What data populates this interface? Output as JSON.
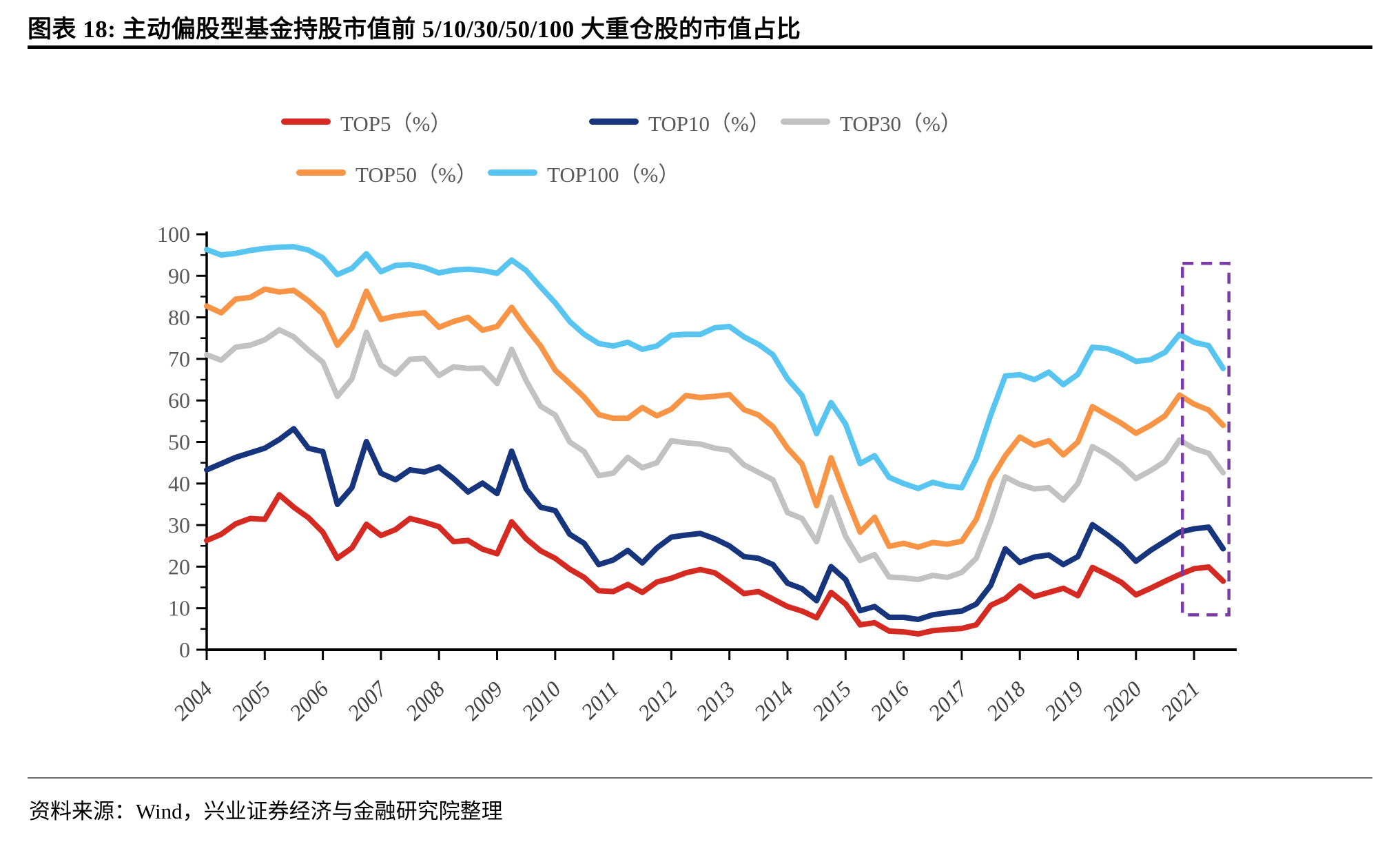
{
  "title": "图表 18:  主动偏股型基金持股市值前 5/10/30/50/100 大重仓股的市值占比",
  "source": "资料来源：Wind，兴业证券经济与金融研究院整理",
  "legend": [
    {
      "label": "TOP5（%）",
      "color": "#d42a22"
    },
    {
      "label": "TOP10（%）",
      "color": "#17357c"
    },
    {
      "label": "TOP30（%）",
      "color": "#c2c2c2"
    },
    {
      "label": "TOP50（%）",
      "color": "#f79445"
    },
    {
      "label": "TOP100（%）",
      "color": "#58c5f0"
    }
  ],
  "chart_data": {
    "type": "line",
    "title": "",
    "xlabel": "",
    "ylabel": "",
    "x_start": 2004,
    "x_step": 0.25,
    "x_ticks": [
      2004,
      2005,
      2006,
      2007,
      2008,
      2009,
      2010,
      2011,
      2012,
      2013,
      2014,
      2015,
      2016,
      2017,
      2018,
      2019,
      2020,
      2021
    ],
    "y_ticks": [
      0,
      10,
      20,
      30,
      40,
      50,
      60,
      70,
      80,
      90,
      100
    ],
    "y_minor_step": 5,
    "ylim": [
      0,
      100
    ],
    "grid": false,
    "legend_position": "top",
    "highlight_box": {
      "x_from": 2020.8,
      "x_to": 2021.6,
      "y_from": 8.4,
      "y_to": 93.0,
      "color": "#7a3ba5"
    },
    "series": [
      {
        "id": "top5",
        "name": "TOP5（%）",
        "color": "#d42a22",
        "values": [
          26.3,
          27.8,
          30.3,
          31.6,
          31.4,
          37.3,
          34.3,
          31.8,
          28.3,
          22.0,
          24.5,
          30.2,
          27.5,
          28.9,
          31.6,
          30.7,
          29.6,
          26.0,
          26.3,
          24.2,
          23.1,
          30.8,
          26.7,
          23.8,
          22.0,
          19.4,
          17.4,
          14.2,
          14.0,
          15.7,
          13.8,
          16.3,
          17.2,
          18.5,
          19.3,
          18.5,
          16.1,
          13.5,
          14.0,
          12.2,
          10.4,
          9.3,
          7.7,
          13.8,
          11.0,
          6.0,
          6.5,
          4.5,
          4.3,
          3.8,
          4.6,
          4.9,
          5.1,
          6.0,
          10.7,
          12.3,
          15.3,
          12.8,
          13.8,
          14.8,
          13.0,
          19.8,
          18.1,
          16.2,
          13.2,
          14.8,
          16.5,
          18.1,
          19.5,
          19.9,
          16.5
        ]
      },
      {
        "id": "top10",
        "name": "TOP10（%）",
        "color": "#17357c",
        "values": [
          43.3,
          44.8,
          46.3,
          47.4,
          48.5,
          50.6,
          53.2,
          48.5,
          47.7,
          35.0,
          39.0,
          50.1,
          42.5,
          40.9,
          43.3,
          42.8,
          44.0,
          41.2,
          38.0,
          40.1,
          37.6,
          47.8,
          38.7,
          34.3,
          33.5,
          27.8,
          25.6,
          20.5,
          21.6,
          23.9,
          20.9,
          24.5,
          27.1,
          27.6,
          28.0,
          26.7,
          25.0,
          22.4,
          22.0,
          20.5,
          16.0,
          14.7,
          11.8,
          20.0,
          16.9,
          9.4,
          10.4,
          7.8,
          7.8,
          7.3,
          8.4,
          8.9,
          9.3,
          11.0,
          15.5,
          24.3,
          21.0,
          22.3,
          22.8,
          20.5,
          22.4,
          30.1,
          27.7,
          25.0,
          21.3,
          23.9,
          26.1,
          28.3,
          29.1,
          29.5,
          24.3
        ]
      },
      {
        "id": "top30",
        "name": "TOP30（%）",
        "color": "#c2c2c2",
        "values": [
          71.0,
          69.7,
          72.8,
          73.3,
          74.6,
          77.0,
          75.3,
          72.1,
          69.2,
          61.0,
          65.2,
          76.4,
          68.5,
          66.3,
          69.9,
          70.1,
          66.0,
          68.1,
          67.7,
          67.8,
          64.1,
          72.3,
          64.8,
          58.6,
          56.5,
          50.0,
          47.7,
          41.9,
          42.5,
          46.3,
          43.8,
          45.0,
          50.3,
          49.8,
          49.5,
          48.5,
          48.0,
          44.5,
          42.7,
          40.9,
          33.0,
          31.6,
          26.0,
          36.7,
          27.3,
          21.5,
          22.9,
          17.5,
          17.3,
          16.9,
          17.9,
          17.4,
          18.6,
          22.0,
          31.0,
          41.6,
          39.8,
          38.7,
          39.0,
          36.0,
          40.0,
          48.9,
          47.0,
          44.5,
          41.2,
          43.1,
          45.3,
          50.5,
          48.4,
          47.3,
          42.6
        ]
      },
      {
        "id": "top50",
        "name": "TOP50（%）",
        "color": "#f79445",
        "values": [
          82.7,
          81.1,
          84.4,
          84.8,
          86.8,
          86.1,
          86.5,
          84.0,
          80.8,
          73.3,
          77.5,
          86.3,
          79.5,
          80.3,
          80.8,
          81.1,
          77.6,
          79.0,
          80.0,
          76.9,
          77.8,
          82.4,
          77.5,
          73.1,
          67.3,
          64.1,
          60.8,
          56.6,
          55.7,
          55.7,
          58.3,
          56.3,
          57.9,
          61.2,
          60.7,
          61.0,
          61.4,
          57.8,
          56.5,
          53.7,
          48.5,
          44.7,
          34.7,
          46.2,
          37.0,
          28.3,
          31.9,
          24.9,
          25.6,
          24.7,
          25.8,
          25.4,
          26.1,
          31.4,
          40.9,
          46.7,
          51.2,
          49.2,
          50.3,
          46.9,
          50.0,
          58.5,
          56.5,
          54.5,
          52.1,
          54.0,
          56.3,
          61.3,
          59.1,
          57.7,
          54.0
        ]
      },
      {
        "id": "top100",
        "name": "TOP100（%）",
        "color": "#58c5f0",
        "values": [
          96.3,
          95.0,
          95.4,
          96.1,
          96.6,
          96.9,
          97.0,
          96.2,
          94.3,
          90.3,
          91.8,
          95.3,
          91.0,
          92.5,
          92.7,
          92.0,
          90.7,
          91.4,
          91.6,
          91.3,
          90.6,
          93.8,
          91.3,
          87.3,
          83.5,
          79.0,
          75.9,
          73.7,
          73.1,
          74.0,
          72.3,
          73.1,
          75.7,
          75.9,
          75.9,
          77.5,
          77.8,
          75.3,
          73.5,
          71.0,
          65.2,
          61.2,
          52.0,
          59.5,
          54.3,
          44.8,
          46.7,
          41.5,
          40.0,
          38.8,
          40.3,
          39.4,
          39.0,
          46.0,
          56.5,
          65.9,
          66.2,
          65.0,
          66.8,
          63.8,
          66.3,
          72.8,
          72.5,
          71.2,
          69.4,
          69.8,
          71.6,
          75.9,
          74.0,
          73.2,
          67.7
        ]
      }
    ]
  }
}
